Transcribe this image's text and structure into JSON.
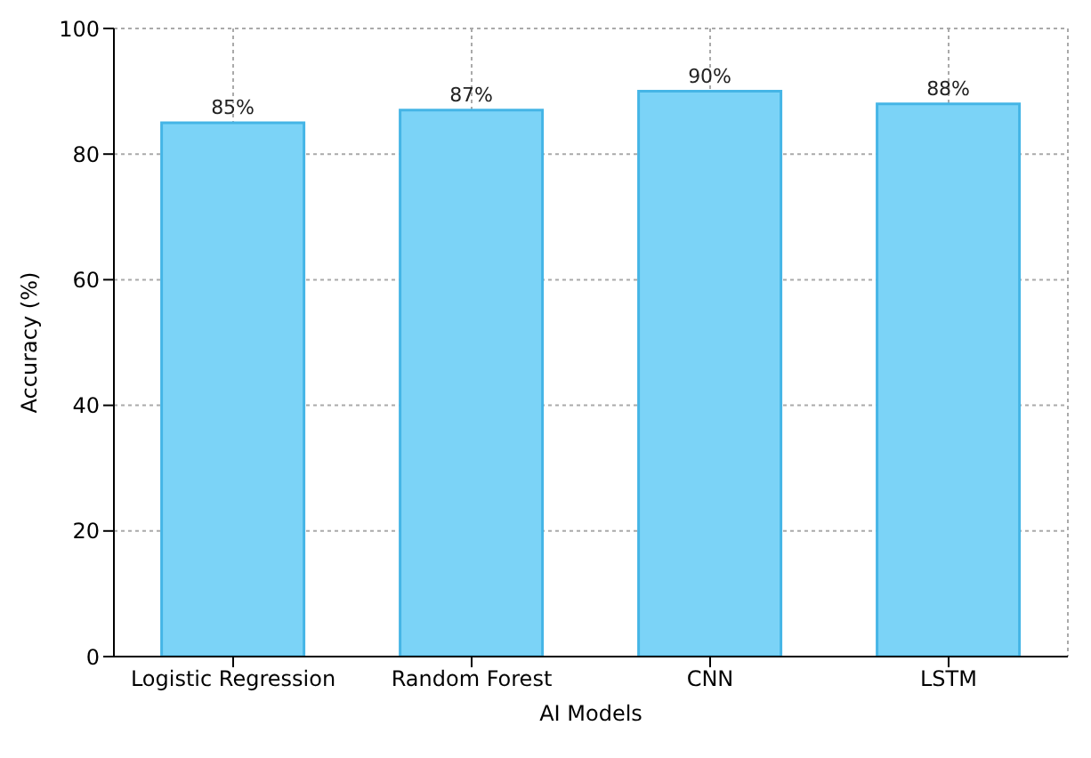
{
  "chart_data": {
    "type": "bar",
    "xlabel": "AI Models",
    "ylabel": "Accuracy (%)",
    "categories": [
      "Logistic Regression",
      "Random Forest",
      "CNN",
      "LSTM"
    ],
    "values": [
      85,
      87,
      90,
      88
    ],
    "value_labels": [
      "85%",
      "87%",
      "90%",
      "88%"
    ],
    "color": "#7bd3f7",
    "ylim": [
      0,
      100
    ],
    "yticks": [
      0,
      20,
      40,
      60,
      80,
      100
    ],
    "grid": true
  }
}
